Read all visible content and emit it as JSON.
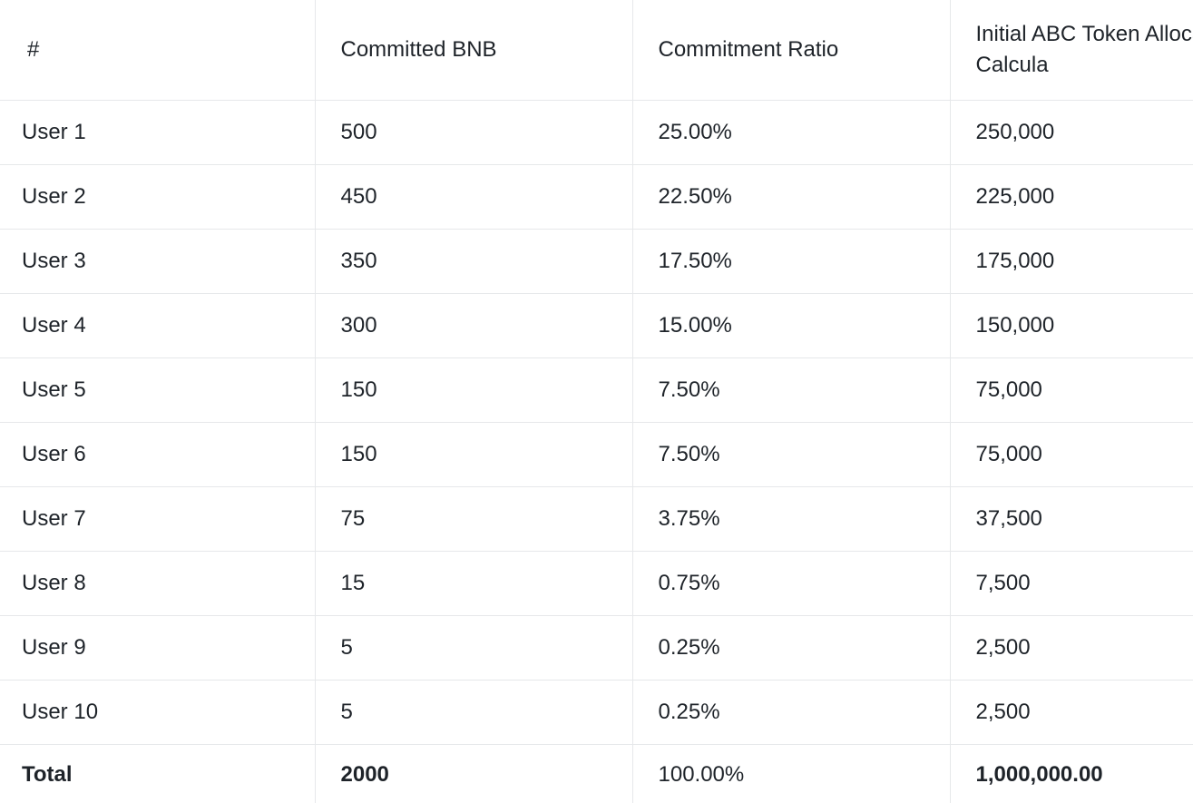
{
  "table": {
    "columns": [
      "#",
      "Committed BNB",
      "Commitment Ratio",
      "Initial ABC Token Allocation Calcula"
    ],
    "rows": [
      [
        "User 1",
        "500",
        "25.00%",
        "250,000"
      ],
      [
        "User 2",
        "450",
        "22.50%",
        "225,000"
      ],
      [
        "User 3",
        "350",
        "17.50%",
        "175,000"
      ],
      [
        "User 4",
        "300",
        "15.00%",
        "150,000"
      ],
      [
        "User 5",
        "150",
        "7.50%",
        "75,000"
      ],
      [
        "User 6",
        "150",
        "7.50%",
        "75,000"
      ],
      [
        "User 7",
        "75",
        "3.75%",
        "37,500"
      ],
      [
        "User 8",
        "15",
        "0.75%",
        "7,500"
      ],
      [
        "User 9",
        "5",
        "0.25%",
        "2,500"
      ],
      [
        "User 10",
        "5",
        "0.25%",
        "2,500"
      ]
    ],
    "total": [
      "Total",
      "2000",
      "100.00%",
      "1,000,000.00"
    ]
  },
  "colors": {
    "text": "#1e2329",
    "border": "#e6e8ea",
    "background": "#ffffff"
  }
}
